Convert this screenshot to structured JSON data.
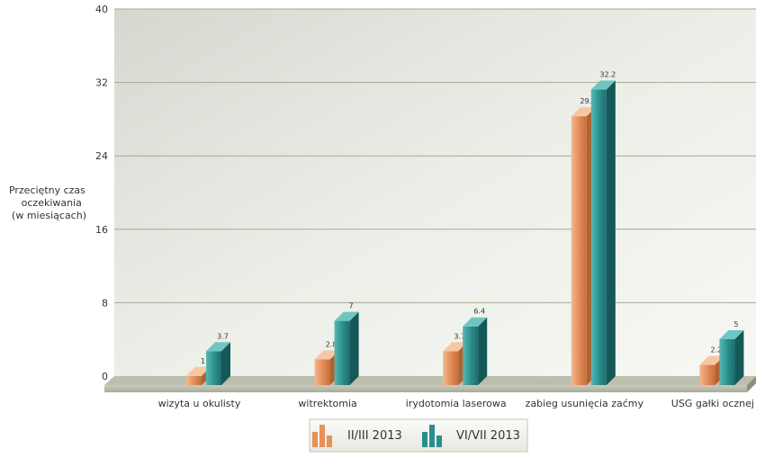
{
  "chart_data": {
    "type": "bar",
    "ylabel": [
      "Przeciętny czas",
      "oczekiwania",
      "(w miesiącach)"
    ],
    "ylim": [
      0,
      40
    ],
    "yticks": [
      "0",
      "8",
      "16",
      "24",
      "32",
      "40"
    ],
    "grid": true,
    "legend_position": "bottom-center",
    "categories": [
      "wizyta u okulisty",
      "witrektomia",
      "irydotomia laserowa",
      "zabieg usunięcia zaćmy",
      "USG gałki ocznej"
    ],
    "series": [
      {
        "name": "II/III 2013",
        "values": [
          1,
          2.8,
          3.7,
          29.3,
          2.2
        ],
        "labels": [
          "1",
          "2.8",
          "3.7",
          "29.3",
          "2.2"
        ],
        "color": "#e8905a"
      },
      {
        "name": "VI/VII 2013",
        "values": [
          3.7,
          7,
          6.4,
          32.2,
          5
        ],
        "labels": [
          "3.7",
          "7",
          "6.4",
          "32.2",
          "5"
        ],
        "color": "#2a8e8c"
      }
    ]
  }
}
